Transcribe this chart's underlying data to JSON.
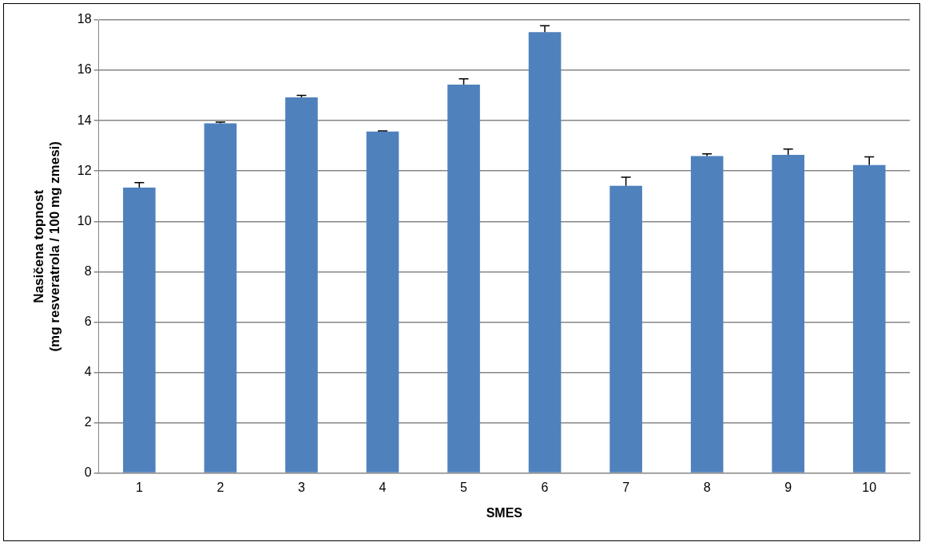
{
  "chart_data": {
    "type": "bar",
    "xlabel": "SMES",
    "ylabel": "Nasičena topnost\n(mg resveratrola / 100 mg zmesi)",
    "categories": [
      "1",
      "2",
      "3",
      "4",
      "5",
      "6",
      "7",
      "8",
      "9",
      "10"
    ],
    "values": [
      11.34,
      13.89,
      14.92,
      13.57,
      15.43,
      17.52,
      11.41,
      12.59,
      12.64,
      12.24
    ],
    "errors": [
      [
        11.34,
        11.54
      ],
      [
        13.89,
        13.94
      ],
      [
        14.92,
        15.0
      ],
      [
        13.57,
        13.59
      ],
      [
        15.43,
        15.66
      ],
      [
        17.52,
        17.77
      ],
      [
        11.41,
        11.75
      ],
      [
        12.59,
        12.68
      ],
      [
        12.64,
        12.87
      ],
      [
        12.24,
        12.56
      ]
    ],
    "color": "#4f81bd",
    "ylim": [
      0,
      18
    ],
    "yticks": [
      0,
      2,
      4,
      6,
      8,
      10,
      12,
      14,
      16,
      18
    ],
    "grid": "y",
    "legend": false
  }
}
